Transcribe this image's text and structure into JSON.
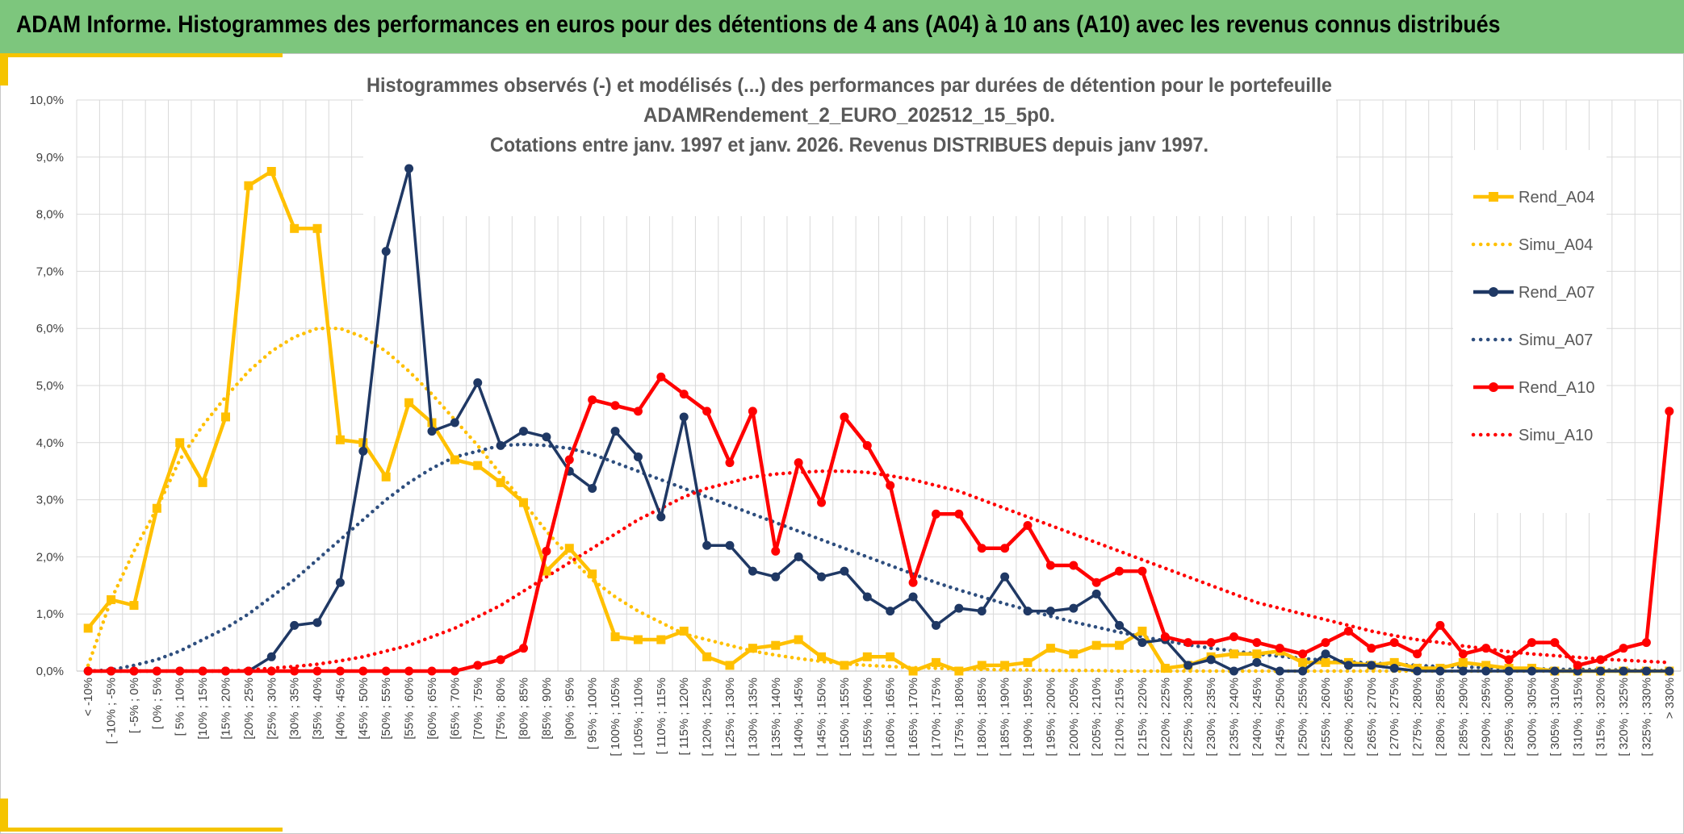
{
  "banner": {
    "title": "ADAM Informe. Histogrammes des performances en euros pour des détentions de 4 ans (A04) à 10 ans (A10) avec les revenus connus distribués"
  },
  "colors": {
    "banner": "#7dc67d",
    "accent": "#f5c400",
    "A04": "#ffc000",
    "A07": "#1f3864",
    "A07_simu": "#2e4e7e",
    "A10": "#ff0000"
  },
  "chart_data": {
    "type": "line",
    "title_lines": [
      "Histogrammes observés (-) et modélisés (...) des performances  par durées de détention pour le portefeuille",
      "ADAMRendement_2_EURO_202512_15_5p0.",
      "Cotations entre janv. 1997 et janv. 2026. Revenus DISTRIBUES depuis janv 1997."
    ],
    "ylim": [
      0,
      10
    ],
    "yticks": [
      "0,0%",
      "1,0%",
      "2,0%",
      "3,0%",
      "4,0%",
      "5,0%",
      "6,0%",
      "7,0%",
      "8,0%",
      "9,0%",
      "10,0%"
    ],
    "categories": [
      "< -10%",
      "[ -10% ; -5%",
      "[ -5% ; 0%",
      "[ 0% ; 5%",
      "[ 5% ; 10%",
      "[10% ; 15%",
      "[15% ; 20%",
      "[20% ; 25%",
      "[25% ; 30%",
      "[30% ; 35%",
      "[35% ; 40%",
      "[40% ; 45%",
      "[45% ; 50%",
      "[50% ; 55%",
      "[55% ; 60%",
      "[60% ; 65%",
      "[65% ; 70%",
      "[70% ; 75%",
      "[75% ; 80%",
      "[80% ; 85%",
      "[85% ; 90%",
      "[90% ; 95%",
      "[ 95% ; 100%",
      "[ 100% ; 105%",
      "[ 105% ; 110%",
      "[ 110% ; 115%",
      "[ 115% ; 120%",
      "[ 120% ; 125%",
      "[ 125% ; 130%",
      "[ 130% ; 135%",
      "[ 135% ; 140%",
      "[ 140% ; 145%",
      "[ 145% ; 150%",
      "[ 150% ; 155%",
      "[ 155% ; 160%",
      "[ 160% ; 165%",
      "[ 165% ; 170%",
      "[ 170% ; 175%",
      "[ 175% ; 180%",
      "[ 180% ; 185%",
      "[ 185% ; 190%",
      "[ 190% ; 195%",
      "[ 195% ; 200%",
      "[ 200% ; 205%",
      "[ 205% ; 210%",
      "[ 210% ; 215%",
      "[ 215% ; 220%",
      "[ 220% ; 225%",
      "[ 225% ; 230%",
      "[ 230% ; 235%",
      "[ 235% ; 240%",
      "[ 240% ; 245%",
      "[ 245% ; 250%",
      "[ 250% ; 255%",
      "[ 255% ; 260%",
      "[ 260% ; 265%",
      "[ 265% ; 270%",
      "[ 270% ; 275%",
      "[ 275% ; 280%",
      "[ 280% ; 285%",
      "[ 285% ; 290%",
      "[ 290% ; 295%",
      "[ 295% ; 300%",
      "[ 300% ; 305%",
      "[ 305% ; 310%",
      "[ 310% ; 315%",
      "[ 315% ; 320%",
      "[ 320% ; 325%",
      "[ 325% ; 330%",
      "> 330%"
    ],
    "series": [
      {
        "name": "Rend_A04",
        "style": "solid",
        "marker": "square",
        "color": "#ffc000",
        "values": [
          0.75,
          1.25,
          1.15,
          2.85,
          4.0,
          3.3,
          4.45,
          8.5,
          8.75,
          7.75,
          7.75,
          4.05,
          4.0,
          3.4,
          4.7,
          4.35,
          3.7,
          3.6,
          3.3,
          2.95,
          1.75,
          2.15,
          1.7,
          0.6,
          0.55,
          0.55,
          0.7,
          0.25,
          0.1,
          0.4,
          0.45,
          0.55,
          0.25,
          0.1,
          0.25,
          0.25,
          0.0,
          0.15,
          0.0,
          0.1,
          0.1,
          0.15,
          0.4,
          0.3,
          0.45,
          0.45,
          0.7,
          0.05,
          0.1,
          0.25,
          0.3,
          0.3,
          0.35,
          0.15,
          0.15,
          0.15,
          0.1,
          0.15,
          0.05,
          0.05,
          0.15,
          0.1,
          0.05,
          0.05,
          0.0,
          0.0,
          0.0,
          0.0,
          0.0,
          0.0
        ]
      },
      {
        "name": "Simu_A04",
        "style": "dotted",
        "marker": "none",
        "color": "#ffc000",
        "values": [
          0.1,
          1.25,
          2.1,
          2.85,
          3.7,
          4.3,
          4.8,
          5.25,
          5.6,
          5.85,
          6.0,
          6.0,
          5.85,
          5.6,
          5.25,
          4.85,
          4.4,
          3.95,
          3.45,
          2.95,
          2.45,
          2.0,
          1.6,
          1.3,
          1.05,
          0.85,
          0.65,
          0.55,
          0.45,
          0.35,
          0.28,
          0.22,
          0.17,
          0.13,
          0.1,
          0.08,
          0.06,
          0.05,
          0.04,
          0.03,
          0.02,
          0.02,
          0.01,
          0.01,
          0.01,
          0.0,
          0.0,
          0.0,
          0.0,
          0.0,
          0.0,
          0.0,
          0.0,
          0.0,
          0.0,
          0.0,
          0.0,
          0.0,
          0.0,
          0.0,
          0.0,
          0.0,
          0.0,
          0.0,
          0.0,
          0.0,
          0.0,
          0.0,
          0.0,
          0.0
        ]
      },
      {
        "name": "Rend_A07",
        "style": "solid",
        "marker": "circle",
        "color": "#1f3864",
        "values": [
          0.0,
          0.0,
          0.0,
          0.0,
          0.0,
          0.0,
          0.0,
          0.0,
          0.25,
          0.8,
          0.85,
          1.55,
          3.85,
          7.35,
          8.8,
          4.2,
          4.35,
          5.05,
          3.95,
          4.2,
          4.1,
          3.5,
          3.2,
          4.2,
          3.75,
          2.7,
          4.45,
          2.2,
          2.2,
          1.75,
          1.65,
          2.0,
          1.65,
          1.75,
          1.3,
          1.05,
          1.3,
          0.8,
          1.1,
          1.05,
          1.65,
          1.05,
          1.05,
          1.1,
          1.35,
          0.8,
          0.5,
          0.55,
          0.1,
          0.2,
          0.0,
          0.15,
          0.0,
          0.0,
          0.3,
          0.1,
          0.1,
          0.05,
          0.0,
          0.0,
          0.0,
          0.0,
          0.0,
          0.0,
          0.0,
          0.0,
          0.0,
          0.0,
          0.0,
          0.0
        ]
      },
      {
        "name": "Simu_A07",
        "style": "dotted",
        "marker": "none",
        "color": "#2e4e7e",
        "values": [
          0.0,
          0.02,
          0.1,
          0.2,
          0.35,
          0.55,
          0.75,
          1.0,
          1.3,
          1.6,
          1.95,
          2.3,
          2.65,
          3.0,
          3.3,
          3.55,
          3.75,
          3.85,
          3.95,
          3.97,
          3.95,
          3.9,
          3.8,
          3.65,
          3.5,
          3.35,
          3.2,
          3.05,
          2.9,
          2.75,
          2.6,
          2.45,
          2.3,
          2.15,
          2.0,
          1.85,
          1.7,
          1.55,
          1.42,
          1.3,
          1.18,
          1.07,
          0.96,
          0.86,
          0.77,
          0.68,
          0.6,
          0.53,
          0.46,
          0.4,
          0.35,
          0.3,
          0.26,
          0.22,
          0.19,
          0.16,
          0.14,
          0.12,
          0.1,
          0.08,
          0.07,
          0.06,
          0.05,
          0.04,
          0.03,
          0.03,
          0.02,
          0.02,
          0.01,
          0.01
        ]
      },
      {
        "name": "Rend_A10",
        "style": "solid",
        "marker": "circle",
        "color": "#ff0000",
        "values": [
          0.0,
          0.0,
          0.0,
          0.0,
          0.0,
          0.0,
          0.0,
          0.0,
          0.0,
          0.0,
          0.0,
          0.0,
          0.0,
          0.0,
          0.0,
          0.0,
          0.0,
          0.1,
          0.2,
          0.4,
          2.1,
          3.7,
          4.75,
          4.65,
          4.55,
          5.15,
          4.85,
          4.55,
          3.65,
          4.55,
          2.1,
          3.65,
          2.95,
          4.45,
          3.95,
          3.25,
          1.55,
          2.75,
          2.75,
          2.15,
          2.15,
          2.55,
          1.85,
          1.85,
          1.55,
          1.75,
          1.75,
          0.6,
          0.5,
          0.5,
          0.6,
          0.5,
          0.4,
          0.3,
          0.5,
          0.7,
          0.4,
          0.5,
          0.3,
          0.8,
          0.3,
          0.4,
          0.2,
          0.5,
          0.5,
          0.1,
          0.2,
          0.4,
          0.5,
          4.55
        ]
      },
      {
        "name": "Simu_A10",
        "style": "dotted",
        "marker": "none",
        "color": "#ff0000",
        "values": [
          0.0,
          0.0,
          0.0,
          0.0,
          0.0,
          0.0,
          0.0,
          0.02,
          0.05,
          0.08,
          0.12,
          0.18,
          0.25,
          0.35,
          0.45,
          0.6,
          0.75,
          0.95,
          1.15,
          1.4,
          1.65,
          1.9,
          2.15,
          2.4,
          2.65,
          2.85,
          3.05,
          3.2,
          3.3,
          3.4,
          3.45,
          3.48,
          3.5,
          3.5,
          3.48,
          3.42,
          3.35,
          3.25,
          3.15,
          3.0,
          2.85,
          2.7,
          2.55,
          2.4,
          2.25,
          2.1,
          1.95,
          1.8,
          1.65,
          1.5,
          1.35,
          1.2,
          1.1,
          1.0,
          0.9,
          0.8,
          0.7,
          0.62,
          0.55,
          0.5,
          0.44,
          0.39,
          0.34,
          0.3,
          0.27,
          0.24,
          0.21,
          0.19,
          0.17,
          0.15
        ]
      }
    ]
  }
}
